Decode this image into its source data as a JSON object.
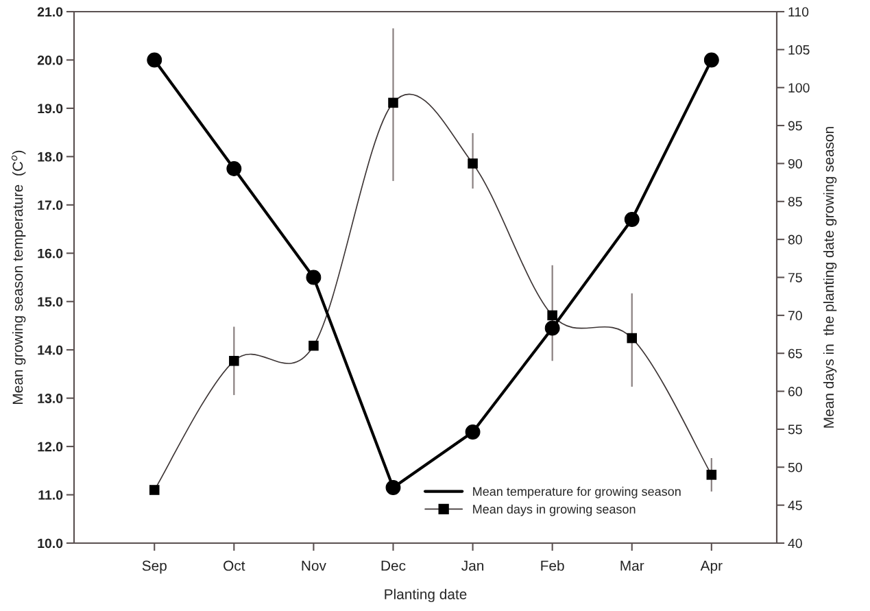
{
  "chart_data": {
    "type": "line",
    "xlabel": "Planting date",
    "ylabel": "Mean growing season temperature  (C$^{o}$)",
    "y2label": "Mean days in  the planting date growing season",
    "categories": [
      "Sep",
      "Oct",
      "Nov",
      "Dec",
      "Jan",
      "Feb",
      "Mar",
      "Apr"
    ],
    "series": [
      {
        "name": "Mean temperature for growing season",
        "color": "#000000",
        "marker": "circle",
        "line_style": "solid",
        "values": [
          20.0,
          17.75,
          15.5,
          11.15,
          12.3,
          14.45,
          16.7,
          20.0
        ]
      },
      {
        "name": "Mean days in growing season",
        "color": "#3d3535",
        "marker": "square",
        "line_style": "solid",
        "axis": "y2",
        "values": [
          47,
          64,
          66,
          98,
          90,
          70,
          67,
          49
        ],
        "errors": [
          null,
          [
            59.5,
            68.5
          ],
          null,
          [
            87.7,
            107.8
          ],
          [
            86.7,
            94
          ],
          [
            64,
            76.6
          ],
          [
            60.6,
            72.9
          ],
          [
            46.8,
            51.2
          ]
        ]
      }
    ],
    "ylim": [
      10.0,
      21.0
    ],
    "yticks": [
      {
        "value": 10,
        "label": "10.0"
      },
      {
        "value": 11,
        "label": "11.0"
      },
      {
        "value": 12,
        "label": "12.0"
      },
      {
        "value": 13,
        "label": "13.0"
      },
      {
        "value": 14,
        "label": "14.0"
      },
      {
        "value": 15,
        "label": "15.0"
      },
      {
        "value": 16,
        "label": "16.0"
      },
      {
        "value": 17,
        "label": "17.0"
      },
      {
        "value": 18,
        "label": "18.0"
      },
      {
        "value": 19,
        "label": "19.0"
      },
      {
        "value": 20,
        "label": "20.0"
      },
      {
        "value": 21,
        "label": "21.0"
      }
    ],
    "y2lim": [
      40,
      110
    ],
    "y2ticks": [
      40,
      45,
      50,
      55,
      60,
      65,
      70,
      75,
      80,
      85,
      90,
      95,
      100,
      105,
      110
    ],
    "grid": false,
    "legend": "bottom right"
  }
}
